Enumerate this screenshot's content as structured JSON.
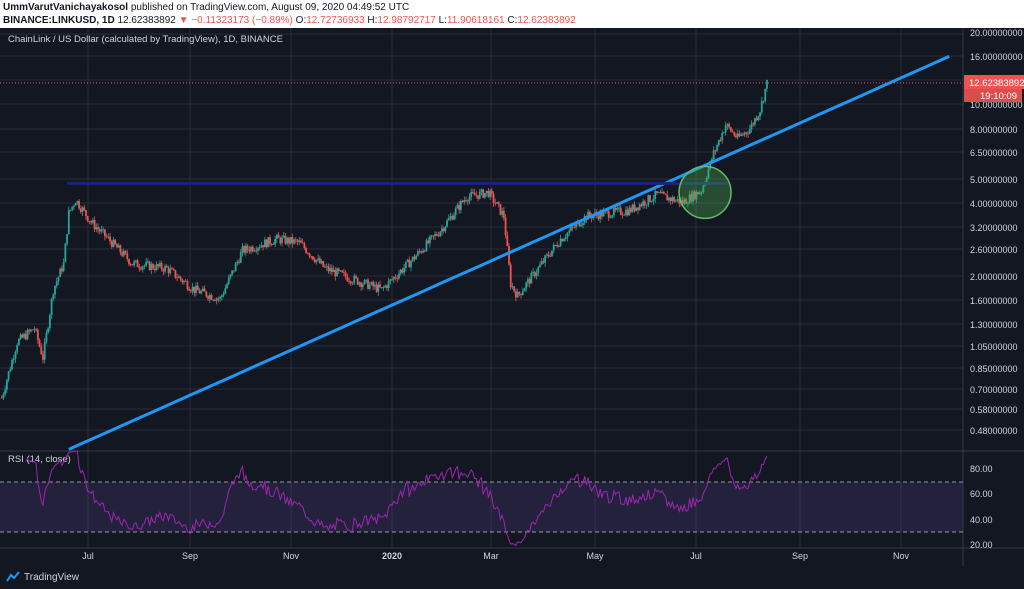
{
  "header": {
    "author": "UmmVarutVanichayakosol",
    "published_text": "published on TradingView.com, August 09, 2020 04:49:52 UTC",
    "symbol": "BINANCE:LINKUSD, 1D",
    "last": "12.62383892",
    "change": "▼ −0.11323173 (−0.89%)",
    "open_label": "O:",
    "open": "12.72736933",
    "high_label": "H:",
    "high": "12.98792717",
    "low_label": "L:",
    "low": "11.90618161",
    "close_label": "C:",
    "close": "12.62383892"
  },
  "chart_title": "ChainLink / US Dollar (calculated by TradingView), 1D, BINANCE",
  "price_axis": {
    "labels": [
      "20.00000000",
      "16.00000000",
      "12.62383892",
      "10.00000000",
      "8.00000000",
      "6.50000000",
      "5.00000000",
      "4.00000000",
      "3.20000000",
      "2.60000000",
      "2.00000000",
      "1.60000000",
      "1.30000000",
      "1.05000000",
      "0.85000000",
      "0.70000000",
      "0.58000000",
      "0.48000000"
    ],
    "last_price_label": "12.62383892",
    "countdown_label": "19:10:09"
  },
  "rsi": {
    "title": "RSI (14, close)",
    "axis_labels": [
      "80.00",
      "60.00",
      "40.00",
      "20.00"
    ]
  },
  "time_axis": {
    "labels": [
      "Jul",
      "Sep",
      "Nov",
      "2020",
      "Mar",
      "May",
      "Jul",
      "Sep",
      "Nov"
    ]
  },
  "branding": {
    "name": "TradingView"
  },
  "colors": {
    "background": "#131722",
    "up": "#26a69a",
    "down": "#ef5350",
    "curve": "#2196f3",
    "resistance": "#1a237e",
    "rsi_line": "#9c27b0",
    "circle": "#4caf50"
  },
  "chart_data": {
    "type": "candlestick",
    "title": "ChainLink / US Dollar (calculated by TradingView), 1D, BINANCE",
    "y_scale": "log",
    "ylim": [
      0.4,
      20
    ],
    "x_range": [
      "2019-05-20",
      "2020-11-30"
    ],
    "anchors": [
      {
        "date": "2019-05-21",
        "price": 0.65
      },
      {
        "date": "2019-05-30",
        "price": 1.1
      },
      {
        "date": "2019-06-09",
        "price": 1.25
      },
      {
        "date": "2019-06-14",
        "price": 0.95
      },
      {
        "date": "2019-06-20",
        "price": 1.8
      },
      {
        "date": "2019-06-26",
        "price": 2.3
      },
      {
        "date": "2019-06-29",
        "price": 3.7
      },
      {
        "date": "2019-07-03",
        "price": 4.2
      },
      {
        "date": "2019-07-12",
        "price": 3.4
      },
      {
        "date": "2019-07-22",
        "price": 2.9
      },
      {
        "date": "2019-08-05",
        "price": 2.3
      },
      {
        "date": "2019-08-25",
        "price": 2.2
      },
      {
        "date": "2019-09-10",
        "price": 1.8
      },
      {
        "date": "2019-09-25",
        "price": 1.65
      },
      {
        "date": "2019-10-08",
        "price": 2.6
      },
      {
        "date": "2019-10-28",
        "price": 2.9
      },
      {
        "date": "2019-11-10",
        "price": 2.8
      },
      {
        "date": "2019-11-25",
        "price": 2.2
      },
      {
        "date": "2019-12-10",
        "price": 2.0
      },
      {
        "date": "2019-12-28",
        "price": 1.8
      },
      {
        "date": "2020-01-15",
        "price": 2.4
      },
      {
        "date": "2020-02-01",
        "price": 3.2
      },
      {
        "date": "2020-02-15",
        "price": 4.3
      },
      {
        "date": "2020-02-28",
        "price": 4.5
      },
      {
        "date": "2020-03-08",
        "price": 3.6
      },
      {
        "date": "2020-03-12",
        "price": 1.9
      },
      {
        "date": "2020-03-16",
        "price": 1.7
      },
      {
        "date": "2020-03-28",
        "price": 2.2
      },
      {
        "date": "2020-04-10",
        "price": 2.9
      },
      {
        "date": "2020-04-25",
        "price": 3.6
      },
      {
        "date": "2020-05-20",
        "price": 3.8
      },
      {
        "date": "2020-06-05",
        "price": 4.4
      },
      {
        "date": "2020-06-20",
        "price": 4.1
      },
      {
        "date": "2020-07-01",
        "price": 4.6
      },
      {
        "date": "2020-07-08",
        "price": 6.5
      },
      {
        "date": "2020-07-15",
        "price": 8.5
      },
      {
        "date": "2020-07-22",
        "price": 7.5
      },
      {
        "date": "2020-07-29",
        "price": 8.2
      },
      {
        "date": "2020-08-04",
        "price": 9.8
      },
      {
        "date": "2020-08-08",
        "price": 12.62
      }
    ],
    "resistance_line": {
      "start": "2019-06-28",
      "end": "2020-07-16",
      "price": 4.9
    },
    "growth_curve": {
      "start": "2019-06-29",
      "start_price": 0.4,
      "end": "2020-11-22",
      "end_price": 16.2
    },
    "highlight_circle": {
      "date": "2020-07-03",
      "price": 4.5
    },
    "rsi_levels": [
      70,
      30
    ],
    "rsi_ylim": [
      20,
      90
    ]
  }
}
